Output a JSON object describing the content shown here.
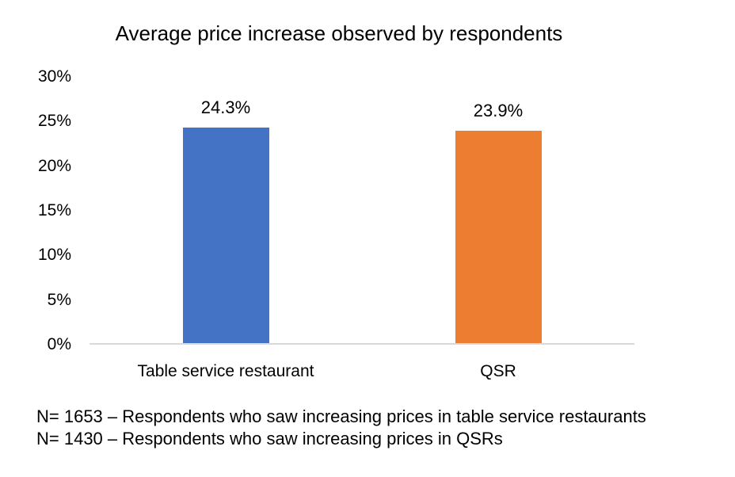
{
  "chart_data": {
    "type": "bar",
    "title": "Average price increase observed by respondents",
    "categories": [
      "Table service restaurant",
      "QSR"
    ],
    "values": [
      24.3,
      23.9
    ],
    "value_labels": [
      "24.3%",
      "23.9%"
    ],
    "bar_colors": [
      "#4472C4",
      "#ED7D31"
    ],
    "ylim": [
      0,
      30
    ],
    "ytick_values": [
      30,
      25,
      20,
      15,
      10,
      5,
      0
    ],
    "ytick_labels": [
      "30%",
      "25%",
      "20%",
      "15%",
      "10%",
      "5%",
      "0%"
    ],
    "xlabel": "",
    "ylabel": "",
    "grid": false,
    "legend": "none",
    "axis_line_color": "#D9D9D9",
    "text_color": "#000000"
  },
  "footnotes": {
    "line1": "N= 1653 – Respondents who saw increasing prices in table service restaurants",
    "line2": "N= 1430 – Respondents who saw increasing prices in QSRs"
  }
}
